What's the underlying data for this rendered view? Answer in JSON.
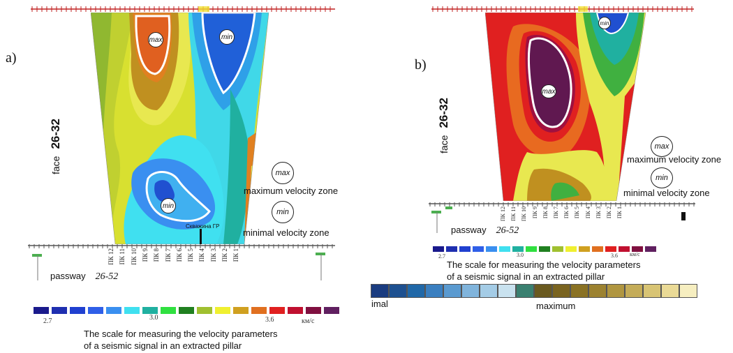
{
  "panel_a": {
    "label": "a)",
    "face_label": "face",
    "face_number": "26-32",
    "max_text": "max",
    "min_text": "min",
    "legend_max": "maximum velocity zone",
    "legend_min": "minimal velocity zone",
    "passway_label": "passway",
    "passway_number": "26-52",
    "borehole_label": "Скважина ГР",
    "pik_labels": [
      "ПК 12",
      "ПК 11",
      "ПК 10",
      "ПК 9",
      "ПК 8",
      "ПК 7",
      "ПК 6",
      "ПК 5",
      "ПК 4",
      "ПК 3",
      "ПК 2",
      "ПК 1"
    ],
    "scale_ticks": [
      "2.7",
      "3.0",
      "3.6",
      "км/с"
    ],
    "caption_line1": "The scale for measuring the velocity parameters",
    "caption_line2": "of  a seismic signal in an extracted pillar",
    "scale_colors": [
      "#1a1a8c",
      "#1f2fb0",
      "#2040d0",
      "#2f5fe8",
      "#3a8ff0",
      "#40e0f0",
      "#20b0a0",
      "#30e040",
      "#208020",
      "#a0c030",
      "#f0f030",
      "#d0a020",
      "#e07020",
      "#e02020",
      "#c01030",
      "#801040",
      "#602060"
    ]
  },
  "panel_b": {
    "label": "b)",
    "face_label": "face",
    "face_number": "26-32",
    "max_text": "max",
    "min_text": "min",
    "legend_max": "maximum velocity zone",
    "legend_min": "minimal velocity zone",
    "passway_label": "passway",
    "passway_number": "26-52",
    "pik_labels": [
      "ПК 12",
      "ПК 11",
      "ПК 10",
      "ПК 9",
      "ПК 8",
      "ПК 7",
      "ПК 6",
      "ПК 5",
      "ПК 4",
      "ПК 3",
      "ПК 2",
      "ПК 1"
    ],
    "scale_ticks": [
      "2.7",
      "3.0",
      "3.6",
      "км/с"
    ],
    "caption_line1": "The scale for measuring the velocity parameters",
    "caption_line2": "of  a seismic signal in an extracted pillar",
    "scale_colors": [
      "#1a1a8c",
      "#1f2fb0",
      "#2040d0",
      "#2f5fe8",
      "#3a8ff0",
      "#40e0f0",
      "#20b0a0",
      "#30e040",
      "#208020",
      "#a0c030",
      "#f0f030",
      "#d0a020",
      "#e07020",
      "#e02020",
      "#c01030",
      "#801040",
      "#602060"
    ],
    "bar2_min_label": "imal",
    "bar2_max_label": "maximum",
    "bar2_colors": [
      "#1a3c80",
      "#1d5090",
      "#2068a8",
      "#3a7fc0",
      "#5a9ad0",
      "#80b4dc",
      "#a4cce6",
      "#c9e2ef",
      "#3a8070",
      "#6a5a20",
      "#7a6420",
      "#8a7224",
      "#9c8230",
      "#b09640",
      "#c4ac58",
      "#d8c474",
      "#eada96",
      "#f6eec0"
    ]
  }
}
